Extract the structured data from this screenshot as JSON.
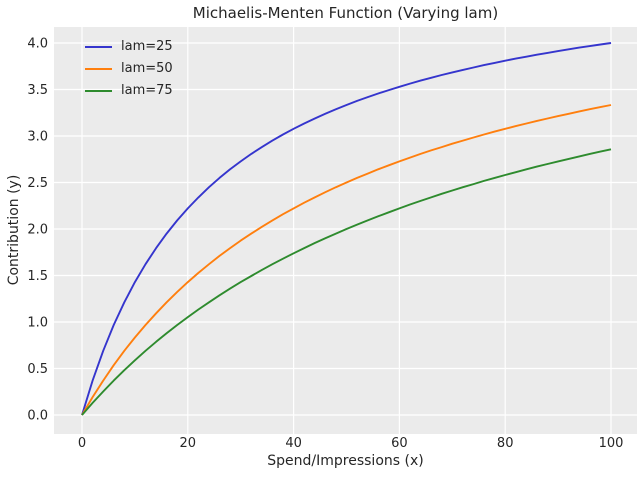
{
  "chart_data": {
    "type": "line",
    "title": "Michaelis-Menten Function (Varying lam)",
    "xlabel": "Spend/Impressions (x)",
    "ylabel": "Contribution (y)",
    "xlim": [
      0,
      100
    ],
    "ylim": [
      0.0,
      4.0
    ],
    "xticks": [
      0,
      20,
      40,
      60,
      80,
      100
    ],
    "yticks": [
      0.0,
      0.5,
      1.0,
      1.5,
      2.0,
      2.5,
      3.0,
      3.5,
      4.0
    ],
    "grid": true,
    "legend_position": "upper-left",
    "plot_background": "#ebebeb",
    "grid_color": "#ffffff",
    "text_color": "#262626",
    "x": [
      0,
      2,
      4,
      6,
      8,
      10,
      12,
      14,
      16,
      18,
      20,
      22,
      24,
      26,
      28,
      30,
      32,
      34,
      36,
      38,
      40,
      42,
      44,
      46,
      48,
      50,
      52,
      54,
      56,
      58,
      60,
      62,
      64,
      66,
      68,
      70,
      72,
      74,
      76,
      78,
      80,
      82,
      84,
      86,
      88,
      90,
      92,
      94,
      96,
      98,
      100
    ],
    "series": [
      {
        "name": "lam=25",
        "color": "#3535cd",
        "values": [
          0,
          0.37,
          0.69,
          0.968,
          1.212,
          1.429,
          1.622,
          1.795,
          1.951,
          2.093,
          2.222,
          2.34,
          2.449,
          2.549,
          2.642,
          2.727,
          2.807,
          2.881,
          2.951,
          3.016,
          3.077,
          3.134,
          3.188,
          3.239,
          3.288,
          3.333,
          3.377,
          3.418,
          3.457,
          3.494,
          3.529,
          3.563,
          3.596,
          3.626,
          3.656,
          3.684,
          3.711,
          3.737,
          3.762,
          3.786,
          3.81,
          3.832,
          3.853,
          3.874,
          3.894,
          3.913,
          3.932,
          3.95,
          3.967,
          3.984,
          4.0
        ]
      },
      {
        "name": "lam=50",
        "color": "#ff7f0e",
        "values": [
          0,
          0.192,
          0.37,
          0.536,
          0.69,
          0.833,
          0.968,
          1.094,
          1.212,
          1.324,
          1.429,
          1.528,
          1.622,
          1.711,
          1.795,
          1.875,
          1.951,
          2.024,
          2.093,
          2.159,
          2.222,
          2.283,
          2.34,
          2.396,
          2.449,
          2.5,
          2.549,
          2.596,
          2.642,
          2.685,
          2.727,
          2.768,
          2.807,
          2.845,
          2.881,
          2.917,
          2.951,
          2.984,
          3.016,
          3.047,
          3.077,
          3.106,
          3.134,
          3.162,
          3.188,
          3.214,
          3.239,
          3.264,
          3.288,
          3.311,
          3.333
        ]
      },
      {
        "name": "lam=75",
        "color": "#2e8b2e",
        "values": [
          0,
          0.13,
          0.253,
          0.37,
          0.482,
          0.588,
          0.69,
          0.787,
          0.879,
          0.968,
          1.053,
          1.134,
          1.212,
          1.287,
          1.359,
          1.429,
          1.495,
          1.56,
          1.622,
          1.681,
          1.739,
          1.795,
          1.849,
          1.901,
          1.951,
          2.0,
          2.047,
          2.093,
          2.137,
          2.18,
          2.222,
          2.263,
          2.302,
          2.34,
          2.378,
          2.414,
          2.449,
          2.483,
          2.517,
          2.549,
          2.581,
          2.611,
          2.642,
          2.671,
          2.699,
          2.727,
          2.754,
          2.781,
          2.807,
          2.832,
          2.857
        ]
      }
    ]
  }
}
